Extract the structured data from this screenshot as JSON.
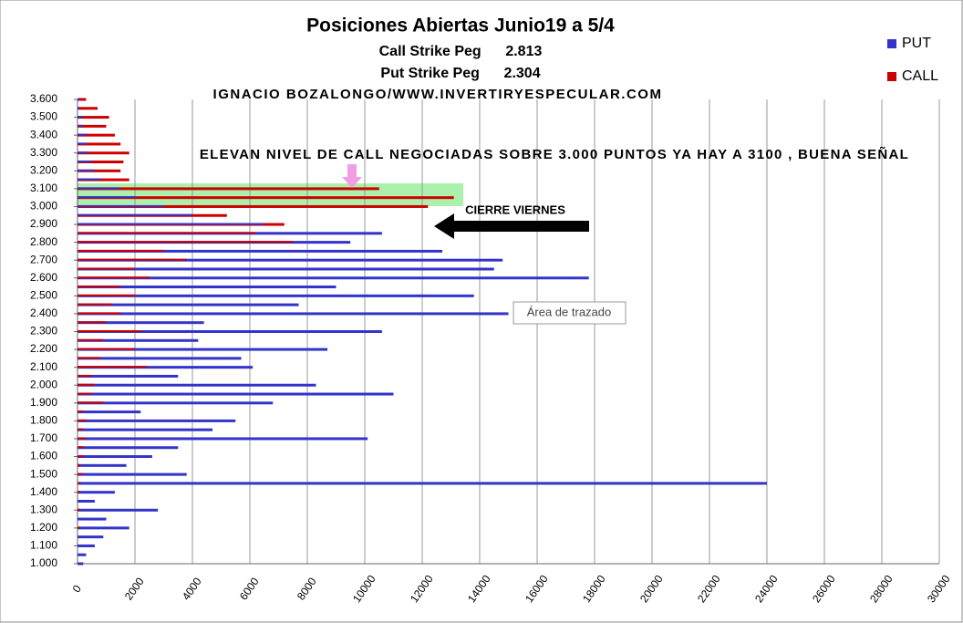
{
  "chart_data": {
    "type": "barh",
    "title": "Posiciones Abiertas Junio19 a 5/4",
    "annotations": [
      "Call Strike Peg      2.813",
      "Put Strike Peg      2.304",
      "IGNACIO BOZALONGO/WWW.INVERTIRYESPECULAR.COM",
      "ELEVAN NIVEL DE CALL NEGOCIADAS SOBRE 3.000 PUNTOS YA HAY A 3100 , BUENA SEÑAL",
      "CIERRE VIERNES",
      "Área de trazado"
    ],
    "y": [
      1000,
      1050,
      1100,
      1150,
      1200,
      1250,
      1300,
      1350,
      1400,
      1450,
      1500,
      1550,
      1600,
      1650,
      1700,
      1750,
      1800,
      1850,
      1900,
      1950,
      2000,
      2050,
      2100,
      2150,
      2200,
      2250,
      2300,
      2350,
      2400,
      2450,
      2500,
      2550,
      2600,
      2650,
      2700,
      2750,
      2800,
      2850,
      2900,
      2950,
      3000,
      3050,
      3100,
      3150,
      3200,
      3250,
      3300,
      3350,
      3400,
      3450,
      3500,
      3550,
      3600
    ],
    "series": [
      {
        "name": "PUT",
        "color": "#3333cc",
        "values": [
          200,
          300,
          600,
          900,
          1800,
          1000,
          2800,
          600,
          1300,
          24000,
          3800,
          1700,
          2600,
          3500,
          10100,
          4700,
          5500,
          2200,
          6800,
          11000,
          8300,
          3500,
          6100,
          5700,
          8700,
          4200,
          10600,
          4400,
          15000,
          7700,
          13800,
          9000,
          17800,
          14500,
          14800,
          12700,
          9500,
          10600,
          6500,
          4000,
          3000,
          2000,
          1500,
          800,
          600,
          500,
          400,
          300,
          300,
          200,
          200,
          100,
          100
        ]
      },
      {
        "name": "CALL",
        "color": "#cc0000",
        "values": [
          0,
          0,
          0,
          0,
          100,
          0,
          100,
          0,
          100,
          100,
          200,
          100,
          200,
          200,
          300,
          200,
          300,
          200,
          900,
          500,
          600,
          500,
          2400,
          800,
          2000,
          900,
          2200,
          1000,
          1500,
          1200,
          2000,
          1500,
          2500,
          2000,
          3800,
          3000,
          7500,
          6200,
          7200,
          5200,
          12200,
          13100,
          10500,
          1800,
          1500,
          1600,
          1800,
          1500,
          1300,
          1000,
          1100,
          700,
          300
        ]
      }
    ],
    "xlim": [
      0,
      30000
    ],
    "xticks": [
      0,
      2000,
      4000,
      6000,
      8000,
      10000,
      12000,
      14000,
      16000,
      18000,
      20000,
      22000,
      24000,
      26000,
      28000,
      30000
    ],
    "ylim": [
      1000,
      3600
    ],
    "yticks": [
      {
        "value": 1000,
        "label": "1.000"
      },
      {
        "value": 1100,
        "label": "1.100"
      },
      {
        "value": 1200,
        "label": "1.200"
      },
      {
        "value": 1300,
        "label": "1.300"
      },
      {
        "value": 1400,
        "label": "1.400"
      },
      {
        "value": 1500,
        "label": "1.500"
      },
      {
        "value": 1600,
        "label": "1.600"
      },
      {
        "value": 1700,
        "label": "1.700"
      },
      {
        "value": 1800,
        "label": "1.800"
      },
      {
        "value": 1900,
        "label": "1.900"
      },
      {
        "value": 2000,
        "label": "2.000"
      },
      {
        "value": 2100,
        "label": "2.100"
      },
      {
        "value": 2200,
        "label": "2.200"
      },
      {
        "value": 2300,
        "label": "2.300"
      },
      {
        "value": 2400,
        "label": "2.400"
      },
      {
        "value": 2500,
        "label": "2.500"
      },
      {
        "value": 2600,
        "label": "2.600"
      },
      {
        "value": 2700,
        "label": "2.700"
      },
      {
        "value": 2800,
        "label": "2.800"
      },
      {
        "value": 2900,
        "label": "2.900"
      },
      {
        "value": 3000,
        "label": "3.000"
      },
      {
        "value": 3100,
        "label": "3.100"
      },
      {
        "value": 3200,
        "label": "3.200"
      },
      {
        "value": 3300,
        "label": "3.300"
      },
      {
        "value": 3400,
        "label": "3.400"
      },
      {
        "value": 3500,
        "label": "3.500"
      },
      {
        "value": 3600,
        "label": "3.600"
      }
    ],
    "grid": true,
    "legend": "top-right"
  }
}
